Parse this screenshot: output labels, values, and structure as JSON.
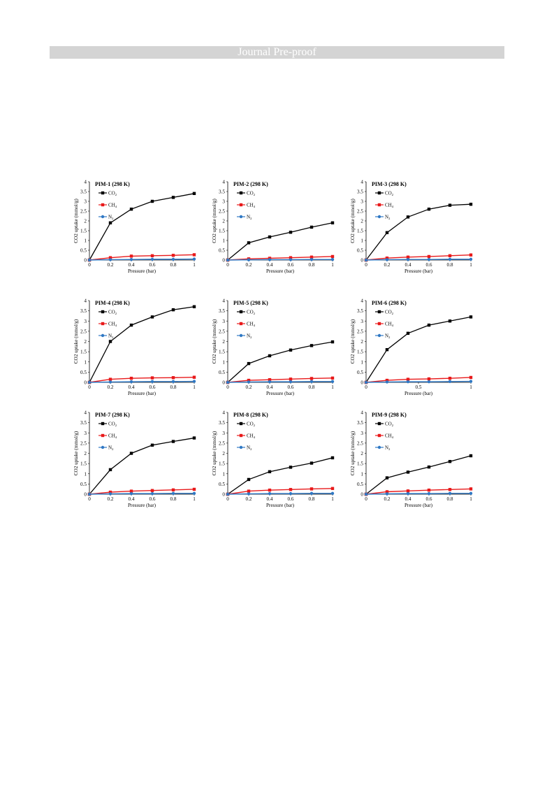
{
  "header": {
    "title": "Journal Pre-proof"
  },
  "colors": {
    "co2": "#000000",
    "ch4": "#e8191a",
    "n2": "#2f78c4",
    "header_bg": "#d4d4d4"
  },
  "chart_data": [
    {
      "type": "line",
      "title": "PIM-1 (298 K)",
      "xlabel": "Pressure (bar)",
      "ylabel": "CO2 uptake (mmol/g)",
      "xlim": [
        0,
        1
      ],
      "ylim": [
        0,
        4
      ],
      "xticks": [
        "0",
        "0.2",
        "0.4",
        "0.6",
        "0.8",
        "1"
      ],
      "xtick_values": [
        0,
        0.2,
        0.4,
        0.6,
        0.8,
        1
      ],
      "yticks": [
        "0",
        "0.5",
        "1",
        "1.5",
        "2",
        "2.5",
        "3",
        "3.5",
        "4"
      ],
      "legend_position": "top-left",
      "series": [
        {
          "name": "CO2",
          "x": [
            0,
            0.2,
            0.4,
            0.6,
            0.8,
            1
          ],
          "y": [
            0,
            1.9,
            2.6,
            3.0,
            3.2,
            3.4
          ]
        },
        {
          "name": "CH4",
          "x": [
            0,
            0.2,
            0.4,
            0.6,
            0.8,
            1
          ],
          "y": [
            0,
            0.12,
            0.2,
            0.22,
            0.24,
            0.27
          ]
        },
        {
          "name": "N2",
          "x": [
            0,
            0.2,
            0.4,
            0.6,
            0.8,
            1
          ],
          "y": [
            0,
            0.02,
            0.03,
            0.04,
            0.04,
            0.05
          ]
        }
      ]
    },
    {
      "type": "line",
      "title": "PIM-2 (298 K)",
      "xlabel": "Pressure (bar)",
      "ylabel": "CO2 uptake (mmol/g)",
      "xlim": [
        0,
        1
      ],
      "ylim": [
        0,
        4
      ],
      "xticks": [
        "0",
        "0.2",
        "0.4",
        "0.6",
        "0.8",
        "1"
      ],
      "xtick_values": [
        0,
        0.2,
        0.4,
        0.6,
        0.8,
        1
      ],
      "yticks": [
        "0",
        "0.5",
        "1",
        "1.5",
        "2",
        "2.5",
        "3",
        "3.5",
        "4"
      ],
      "legend_position": "top-left",
      "series": [
        {
          "name": "CO2",
          "x": [
            0,
            0.2,
            0.4,
            0.6,
            0.8,
            1
          ],
          "y": [
            0,
            0.88,
            1.18,
            1.42,
            1.68,
            1.9
          ]
        },
        {
          "name": "CH4",
          "x": [
            0,
            0.2,
            0.4,
            0.6,
            0.8,
            1
          ],
          "y": [
            0,
            0.06,
            0.09,
            0.12,
            0.15,
            0.18
          ]
        },
        {
          "name": "N2",
          "x": [
            0,
            0.2,
            0.4,
            0.6,
            0.8,
            1
          ],
          "y": [
            0,
            0.01,
            0.02,
            0.02,
            0.03,
            0.03
          ]
        }
      ]
    },
    {
      "type": "line",
      "title": "PIM-3 (298 K)",
      "xlabel": "Pressure (bar)",
      "ylabel": "CO2 uptake (mmol/g)",
      "xlim": [
        0,
        1
      ],
      "ylim": [
        0,
        4
      ],
      "xticks": [
        "0",
        "0.2",
        "0.4",
        "0.6",
        "0.8",
        "1"
      ],
      "xtick_values": [
        0,
        0.2,
        0.4,
        0.6,
        0.8,
        1
      ],
      "yticks": [
        "0",
        "0.5",
        "1",
        "1.5",
        "2",
        "2.5",
        "3",
        "3.5",
        "4"
      ],
      "legend_position": "top-left",
      "series": [
        {
          "name": "CO2",
          "x": [
            0,
            0.2,
            0.4,
            0.6,
            0.8,
            1
          ],
          "y": [
            0,
            1.4,
            2.2,
            2.6,
            2.8,
            2.85
          ]
        },
        {
          "name": "CH4",
          "x": [
            0,
            0.2,
            0.4,
            0.6,
            0.8,
            1
          ],
          "y": [
            0,
            0.1,
            0.15,
            0.18,
            0.22,
            0.26
          ]
        },
        {
          "name": "N2",
          "x": [
            0,
            0.2,
            0.4,
            0.6,
            0.8,
            1
          ],
          "y": [
            0,
            0.02,
            0.03,
            0.03,
            0.04,
            0.04
          ]
        }
      ]
    },
    {
      "type": "line",
      "title": "PIM-4 (298 K)",
      "xlabel": "Pressure (bar)",
      "ylabel": "CO2 uptake (mmol/g)",
      "xlim": [
        0,
        1
      ],
      "ylim": [
        0,
        4
      ],
      "xticks": [
        "0",
        "0.2",
        "0.4",
        "0.6",
        "0.8",
        "1"
      ],
      "xtick_values": [
        0,
        0.2,
        0.4,
        0.6,
        0.8,
        1
      ],
      "yticks": [
        "0",
        "0.5",
        "1",
        "1.5",
        "2",
        "2.5",
        "3",
        "3.5",
        "4"
      ],
      "legend_position": "top-left",
      "series": [
        {
          "name": "CO2",
          "x": [
            0,
            0.2,
            0.4,
            0.6,
            0.8,
            1
          ],
          "y": [
            0,
            2.0,
            2.8,
            3.2,
            3.55,
            3.7
          ]
        },
        {
          "name": "CH4",
          "x": [
            0,
            0.2,
            0.4,
            0.6,
            0.8,
            1
          ],
          "y": [
            0,
            0.15,
            0.2,
            0.22,
            0.23,
            0.25
          ]
        },
        {
          "name": "N2",
          "x": [
            0,
            0.2,
            0.4,
            0.6,
            0.8,
            1
          ],
          "y": [
            0,
            0.02,
            0.03,
            0.04,
            0.04,
            0.05
          ]
        }
      ]
    },
    {
      "type": "line",
      "title": "PIM-5 (298 K)",
      "xlabel": "Pressure (bar)",
      "ylabel": "CO2 uptake (mmol/g)",
      "xlim": [
        0,
        1
      ],
      "ylim": [
        0,
        4
      ],
      "xticks": [
        "0",
        "0.2",
        "0.4",
        "0.6",
        "0.8",
        "1"
      ],
      "xtick_values": [
        0,
        0.2,
        0.4,
        0.6,
        0.8,
        1
      ],
      "yticks": [
        "0",
        "0.5",
        "1",
        "1.5",
        "2",
        "2.5",
        "3",
        "3.5",
        "4"
      ],
      "legend_position": "top-left",
      "series": [
        {
          "name": "CO2",
          "x": [
            0,
            0.2,
            0.4,
            0.6,
            0.8,
            1
          ],
          "y": [
            0,
            0.92,
            1.3,
            1.58,
            1.8,
            1.98
          ]
        },
        {
          "name": "CH4",
          "x": [
            0,
            0.2,
            0.4,
            0.6,
            0.8,
            1
          ],
          "y": [
            0,
            0.1,
            0.13,
            0.16,
            0.19,
            0.21
          ]
        },
        {
          "name": "N2",
          "x": [
            0,
            0.2,
            0.4,
            0.6,
            0.8,
            1
          ],
          "y": [
            0,
            0.02,
            0.03,
            0.03,
            0.04,
            0.04
          ]
        }
      ]
    },
    {
      "type": "line",
      "title": "PIM-6 (298 K)",
      "xlabel": "Pressure (bar)",
      "ylabel": "CO2 uptake (mmol/g)",
      "xlim": [
        0,
        1
      ],
      "ylim": [
        0,
        4
      ],
      "xticks": [
        "0",
        "0.5",
        "1"
      ],
      "xtick_values": [
        0,
        0.5,
        1
      ],
      "yticks": [
        "0",
        "0.5",
        "1",
        "1.5",
        "2",
        "2.5",
        "3",
        "3.5",
        "4"
      ],
      "legend_position": "top-left",
      "series": [
        {
          "name": "CO2",
          "x": [
            0,
            0.2,
            0.4,
            0.6,
            0.8,
            1
          ],
          "y": [
            0,
            1.6,
            2.4,
            2.8,
            3.0,
            3.2
          ]
        },
        {
          "name": "CH4",
          "x": [
            0,
            0.2,
            0.4,
            0.6,
            0.8,
            1
          ],
          "y": [
            0,
            0.1,
            0.15,
            0.17,
            0.2,
            0.24
          ]
        },
        {
          "name": "N2",
          "x": [
            0,
            0.2,
            0.4,
            0.6,
            0.8,
            1
          ],
          "y": [
            0,
            0.02,
            0.03,
            0.03,
            0.04,
            0.05
          ]
        }
      ]
    },
    {
      "type": "line",
      "title": "PIM-7 (298 K)",
      "xlabel": "Pressure (bar)",
      "ylabel": "CO2 uptake (mmol/g)",
      "xlim": [
        0,
        1
      ],
      "ylim": [
        0,
        4
      ],
      "xticks": [
        "0",
        "0.2",
        "0.4",
        "0.6",
        "0.8",
        "1"
      ],
      "xtick_values": [
        0,
        0.2,
        0.4,
        0.6,
        0.8,
        1
      ],
      "yticks": [
        "0",
        "0.5",
        "1",
        "1.5",
        "2",
        "2.5",
        "3",
        "3.5",
        "4"
      ],
      "legend_position": "top-left",
      "series": [
        {
          "name": "CO2",
          "x": [
            0,
            0.2,
            0.4,
            0.6,
            0.8,
            1
          ],
          "y": [
            0,
            1.2,
            2.0,
            2.4,
            2.58,
            2.75
          ]
        },
        {
          "name": "CH4",
          "x": [
            0,
            0.2,
            0.4,
            0.6,
            0.8,
            1
          ],
          "y": [
            0,
            0.1,
            0.15,
            0.18,
            0.21,
            0.24
          ]
        },
        {
          "name": "N2",
          "x": [
            0,
            0.2,
            0.4,
            0.6,
            0.8,
            1
          ],
          "y": [
            0,
            0.02,
            0.03,
            0.03,
            0.04,
            0.04
          ]
        }
      ]
    },
    {
      "type": "line",
      "title": "PIM-8 (298 K)",
      "xlabel": "Pressure (bar)",
      "ylabel": "CO2 uptake (mmol/g)",
      "xlim": [
        0,
        1
      ],
      "ylim": [
        0,
        4
      ],
      "xticks": [
        "0",
        "0.2",
        "0.4",
        "0.6",
        "0.8",
        "1"
      ],
      "xtick_values": [
        0,
        0.2,
        0.4,
        0.6,
        0.8,
        1
      ],
      "yticks": [
        "0",
        "0.5",
        "1",
        "1.5",
        "2",
        "2.5",
        "3",
        "3.5",
        "4"
      ],
      "legend_position": "top-left",
      "series": [
        {
          "name": "CO2",
          "x": [
            0,
            0.2,
            0.4,
            0.6,
            0.8,
            1
          ],
          "y": [
            0,
            0.72,
            1.1,
            1.32,
            1.52,
            1.78
          ]
        },
        {
          "name": "CH4",
          "x": [
            0,
            0.2,
            0.4,
            0.6,
            0.8,
            1
          ],
          "y": [
            0,
            0.15,
            0.2,
            0.23,
            0.26,
            0.28
          ]
        },
        {
          "name": "N2",
          "x": [
            0,
            0.2,
            0.4,
            0.6,
            0.8,
            1
          ],
          "y": [
            0,
            0.02,
            0.03,
            0.03,
            0.04,
            0.04
          ]
        }
      ]
    },
    {
      "type": "line",
      "title": "PIM-9 (298 K)",
      "xlabel": "Pressure (bar)",
      "ylabel": "CO2 uptake (mmol/g)",
      "xlim": [
        0,
        1
      ],
      "ylim": [
        0,
        4
      ],
      "xticks": [
        "0",
        "0.2",
        "0.4",
        "0.6",
        "0.8",
        "1"
      ],
      "xtick_values": [
        0,
        0.2,
        0.4,
        0.6,
        0.8,
        1
      ],
      "yticks": [
        "0",
        "0.5",
        "1",
        "1.5",
        "2",
        "2.5",
        "3",
        "3.5",
        "4"
      ],
      "legend_position": "top-left",
      "series": [
        {
          "name": "CO2",
          "x": [
            0,
            0.2,
            0.4,
            0.6,
            0.8,
            1
          ],
          "y": [
            0,
            0.8,
            1.08,
            1.33,
            1.6,
            1.88
          ]
        },
        {
          "name": "CH4",
          "x": [
            0,
            0.2,
            0.4,
            0.6,
            0.8,
            1
          ],
          "y": [
            0,
            0.12,
            0.16,
            0.2,
            0.23,
            0.26
          ]
        },
        {
          "name": "N2",
          "x": [
            0,
            0.2,
            0.4,
            0.6,
            0.8,
            1
          ],
          "y": [
            0,
            0.02,
            0.03,
            0.03,
            0.04,
            0.04
          ]
        }
      ]
    }
  ]
}
